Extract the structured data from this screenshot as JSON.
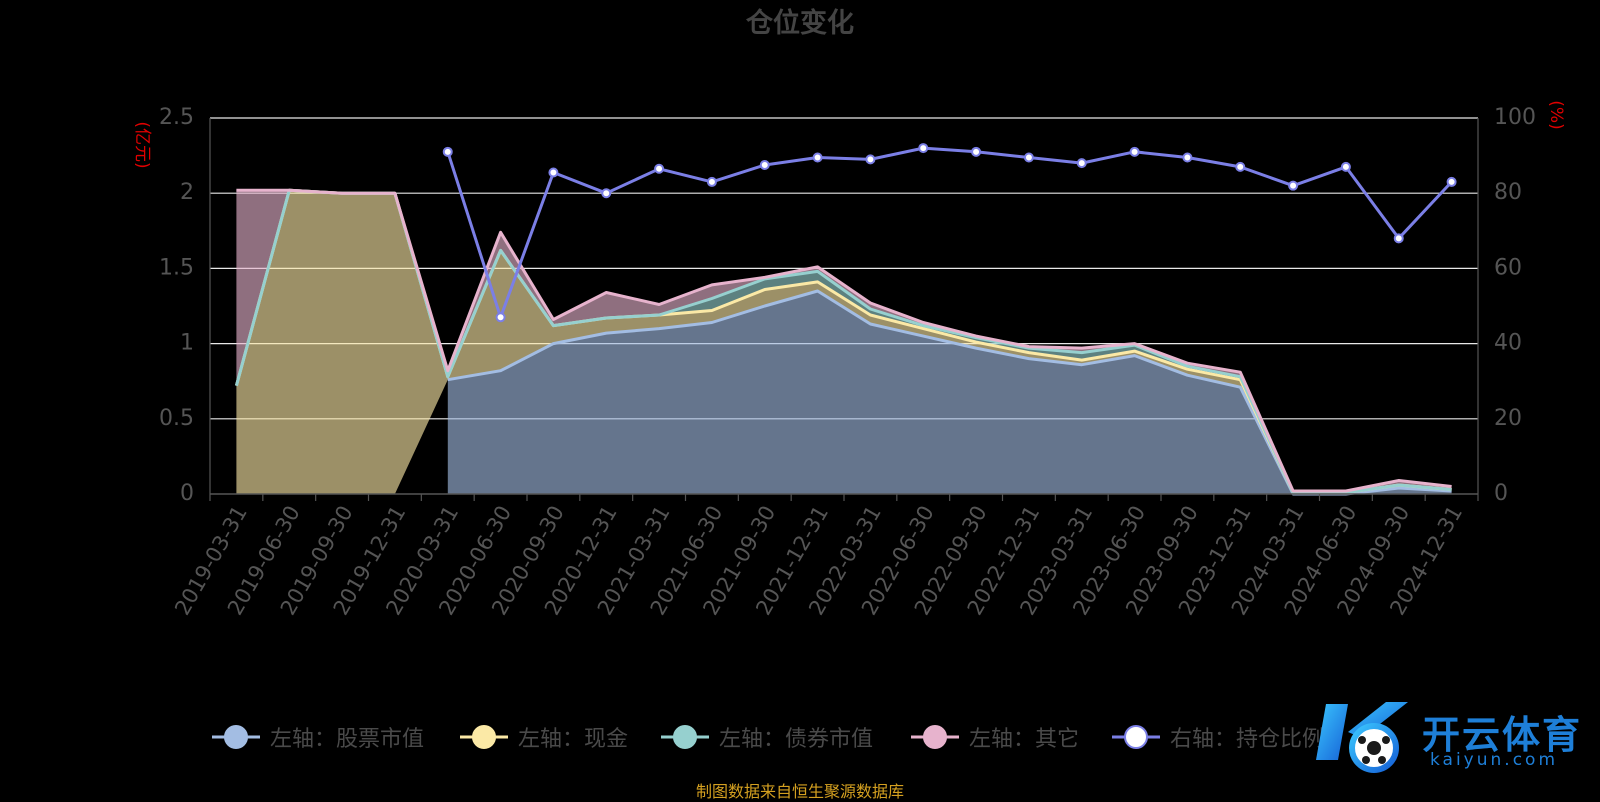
{
  "chart_data": {
    "type": "area",
    "title": "仓位变化",
    "y_left_label": "(亿元)",
    "y_right_label": "(%)",
    "y_left_range": [
      0,
      2.5
    ],
    "y_left_ticks": [
      "0",
      "0.5",
      "1",
      "1.5",
      "2",
      "2.5"
    ],
    "y_right_range": [
      0,
      100
    ],
    "y_right_ticks": [
      "0",
      "20",
      "40",
      "60",
      "80",
      "100"
    ],
    "grid": true,
    "legend_position": "bottom",
    "categories": [
      "2019-03-31",
      "2019-06-30",
      "2019-09-30",
      "2019-12-31",
      "2020-03-31",
      "2020-06-30",
      "2020-09-30",
      "2020-12-31",
      "2021-03-31",
      "2021-06-30",
      "2021-09-30",
      "2021-12-31",
      "2022-03-31",
      "2022-06-30",
      "2022-09-30",
      "2022-12-31",
      "2023-03-31",
      "2023-06-30",
      "2023-09-30",
      "2023-12-31",
      "2024-03-31",
      "2024-06-30",
      "2024-09-30",
      "2024-12-31"
    ],
    "series": [
      {
        "name": "左轴：股票市值",
        "axis": "left",
        "color": "#a3bde3",
        "values": [
          null,
          null,
          null,
          null,
          0.76,
          0.82,
          1.0,
          1.07,
          1.1,
          1.14,
          1.25,
          1.35,
          1.13,
          1.05,
          0.97,
          0.9,
          0.86,
          0.92,
          0.79,
          0.71,
          0.0,
          0.0,
          0.04,
          0.02
        ]
      },
      {
        "name": "左轴：现金",
        "axis": "left",
        "color": "#fbe9a6",
        "values": [
          0.72,
          2.02,
          2.0,
          2.0,
          0.02,
          0.8,
          0.12,
          0.1,
          0.09,
          0.08,
          0.11,
          0.06,
          0.06,
          0.05,
          0.04,
          0.04,
          0.03,
          0.03,
          0.04,
          0.05,
          0.01,
          0.01,
          0.02,
          0.01
        ]
      },
      {
        "name": "左轴：债券市值",
        "axis": "left",
        "color": "#96d0cf",
        "values": [
          0,
          0,
          0,
          0,
          0,
          0,
          0,
          0,
          0,
          0.08,
          0.07,
          0.07,
          0.04,
          0.02,
          0.03,
          0.03,
          0.05,
          0.04,
          0.02,
          0.02,
          0,
          0,
          0,
          0
        ]
      },
      {
        "name": "左轴：其它",
        "axis": "left",
        "color": "#e7b3cd",
        "values": [
          1.3,
          0.0,
          0.0,
          0.0,
          0.04,
          0.12,
          0.04,
          0.17,
          0.07,
          0.09,
          0.01,
          0.03,
          0.04,
          0.02,
          0.01,
          0.01,
          0.03,
          0.01,
          0.02,
          0.03,
          0.01,
          0.01,
          0.03,
          0.02
        ]
      },
      {
        "name": "右轴：持仓比例",
        "axis": "right",
        "color": "#7b7fe6",
        "values": [
          null,
          null,
          null,
          null,
          91,
          47,
          85.5,
          80,
          86.5,
          83,
          87.5,
          89.5,
          89,
          92,
          91,
          89.5,
          88,
          91,
          89.5,
          87,
          82,
          87,
          68,
          83
        ]
      }
    ]
  },
  "source_note": "制图数据来自恒生聚源数据库",
  "watermark": {
    "brand": "开云体育",
    "domain": "kaiyun.com"
  },
  "colors": {
    "background": "#000000",
    "title": "#444444",
    "axis_text": "#555555",
    "axis_name": "#e00000",
    "grid": "#ffffff"
  }
}
